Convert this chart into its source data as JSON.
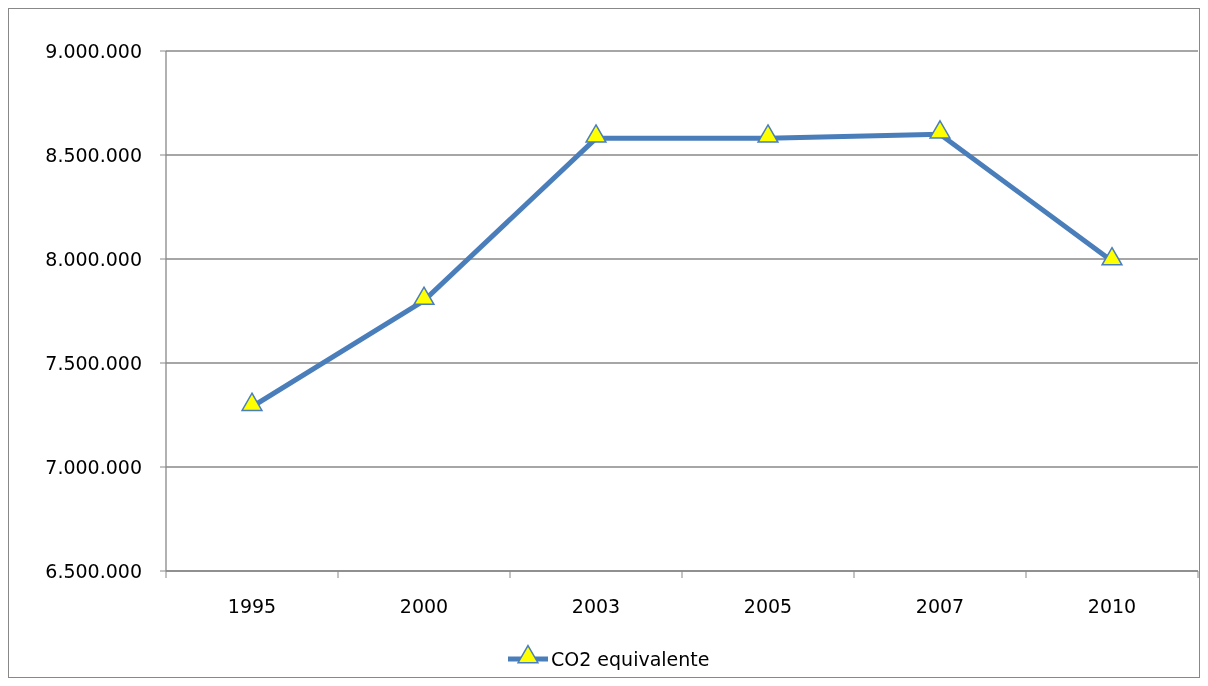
{
  "chart_data": {
    "type": "line",
    "categories": [
      "1995",
      "2000",
      "2003",
      "2005",
      "2007",
      "2010"
    ],
    "series": [
      {
        "name": "CO2 equivalente",
        "color": "#4a7ebb",
        "values": [
          7290000,
          7800000,
          8580000,
          8580000,
          8600000,
          7990000
        ]
      }
    ],
    "ylim": [
      6500000,
      9000000
    ],
    "yticks": [
      {
        "value": 6500000,
        "label": "6.500.000"
      },
      {
        "value": 7000000,
        "label": "7.000.000"
      },
      {
        "value": 7500000,
        "label": "7.500.000"
      },
      {
        "value": 8000000,
        "label": "8.000.000"
      },
      {
        "value": 8500000,
        "label": "8.500.000"
      },
      {
        "value": 9000000,
        "label": "9.000.000"
      }
    ],
    "grid": "y",
    "legend": "bottom",
    "marker": "triangle",
    "line_style": "solid"
  }
}
